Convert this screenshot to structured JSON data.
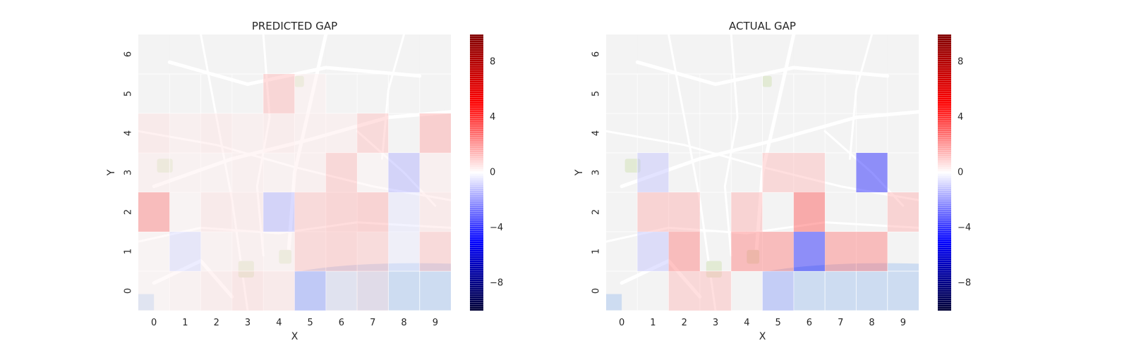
{
  "colorbar": {
    "colormap": "seismic",
    "range": [
      -10,
      10
    ],
    "tick_values": [
      8,
      4,
      0,
      -4,
      -8
    ],
    "tick_labels": [
      "8",
      "4",
      "0",
      "−4",
      "−8"
    ]
  },
  "chart_data": [
    {
      "type": "heatmap",
      "title": "PREDICTED GAP",
      "xlabel": "X",
      "ylabel": "Y",
      "x_categories": [
        "0",
        "1",
        "2",
        "3",
        "4",
        "5",
        "6",
        "7",
        "8",
        "9"
      ],
      "y_categories": [
        "0",
        "1",
        "2",
        "3",
        "4",
        "5",
        "6"
      ],
      "y_rows_top_to_bottom": [
        "6",
        "5",
        "4",
        "3",
        "2",
        "1",
        "0"
      ],
      "grid_shown_rows": [
        "5",
        "4",
        "3",
        "2",
        "1",
        "0"
      ],
      "background": "map",
      "values_top_to_bottom": [
        [
          0,
          0,
          0,
          0,
          0,
          0,
          0,
          0,
          0,
          0
        ],
        [
          0,
          0,
          0,
          0,
          1.5,
          0.3,
          0,
          0,
          0,
          0
        ],
        [
          0.6,
          0.4,
          0.5,
          0.4,
          0.5,
          0.4,
          0.4,
          1.3,
          0,
          1.8
        ],
        [
          0.4,
          0.3,
          0.3,
          0.4,
          0.3,
          0.4,
          1.4,
          0.2,
          -1.6,
          0.4
        ],
        [
          2.6,
          0.2,
          0.6,
          0.5,
          -1.6,
          1.3,
          1.5,
          1.6,
          -0.5,
          0.6
        ],
        [
          0.2,
          -0.8,
          0.3,
          0.4,
          0.3,
          1.3,
          1.4,
          1.2,
          -0.4,
          1.3
        ],
        [
          0.2,
          0.3,
          0.5,
          0.8,
          0.6,
          -1.4,
          0.3,
          0.6,
          0,
          0
        ]
      ]
    },
    {
      "type": "heatmap",
      "title": "ACTUAL GAP",
      "xlabel": "X",
      "ylabel": "Y",
      "x_categories": [
        "0",
        "1",
        "2",
        "3",
        "4",
        "5",
        "6",
        "7",
        "8",
        "9"
      ],
      "y_categories": [
        "0",
        "1",
        "2",
        "3",
        "4",
        "5",
        "6"
      ],
      "y_rows_top_to_bottom": [
        "6",
        "5",
        "4",
        "3",
        "2",
        "1",
        "0"
      ],
      "grid_shown_rows": [
        "5",
        "4",
        "3",
        "2",
        "1",
        "0"
      ],
      "background": "map",
      "values_top_to_bottom": [
        [
          0,
          0,
          0,
          0,
          0,
          0,
          0,
          0,
          0,
          0
        ],
        [
          0,
          0,
          0,
          0,
          0,
          0,
          0,
          0,
          0,
          0
        ],
        [
          0,
          0,
          0,
          0,
          0,
          0,
          0,
          0,
          0,
          0
        ],
        [
          0,
          -1.2,
          0,
          0,
          0,
          1.4,
          1.4,
          0,
          -4.6,
          0
        ],
        [
          0,
          1.6,
          1.6,
          0,
          1.6,
          0,
          3.4,
          0,
          0,
          1.6
        ],
        [
          0,
          -1.2,
          2.6,
          0,
          2.6,
          2.6,
          -4.6,
          2.6,
          2.6,
          0
        ],
        [
          0,
          0,
          1.4,
          1.4,
          0,
          -1.2,
          0,
          0,
          0,
          0
        ]
      ]
    }
  ]
}
